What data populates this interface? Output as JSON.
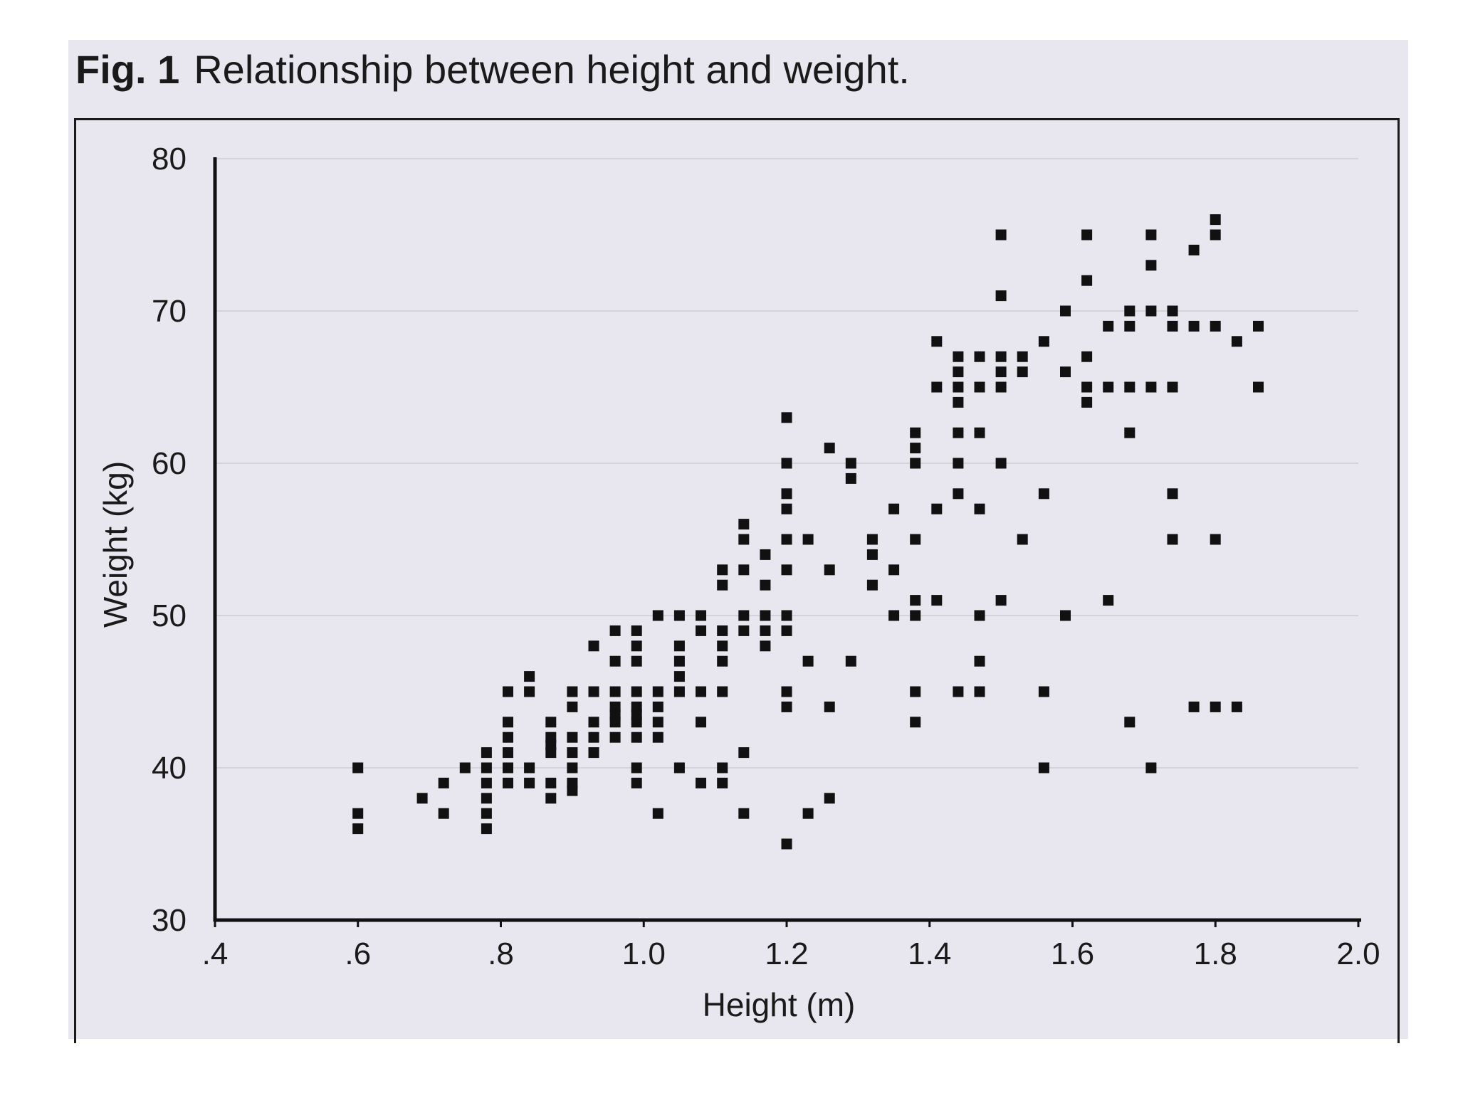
{
  "figure": {
    "label": "Fig. 1",
    "caption": "Relationship between height and weight."
  },
  "colors": {
    "panel_background": "#e8e6ee",
    "marker": "#111111",
    "axis": "#111111",
    "grid": "#d4d2da"
  },
  "chart_data": {
    "type": "scatter",
    "title": "Relationship between height and weight.",
    "xlabel": "Height (m)",
    "ylabel": "Weight (kg)",
    "xlim": [
      0.4,
      2.0
    ],
    "ylim": [
      30,
      80
    ],
    "x_ticks": [
      0.4,
      0.6,
      0.8,
      1.0,
      1.2,
      1.4,
      1.6,
      1.8,
      2.0
    ],
    "x_tick_labels": [
      ".4",
      ".6",
      ".8",
      "1.0",
      "1.2",
      "1.4",
      "1.6",
      "1.8",
      "2.0"
    ],
    "y_ticks": [
      30,
      40,
      50,
      60,
      70,
      80
    ],
    "y_tick_labels": [
      "30",
      "40",
      "50",
      "60",
      "70",
      "80"
    ],
    "grid": "horizontal",
    "marker": "square",
    "points": [
      [
        0.6,
        40
      ],
      [
        0.6,
        37
      ],
      [
        0.6,
        36
      ],
      [
        0.69,
        38
      ],
      [
        0.72,
        39
      ],
      [
        0.72,
        37
      ],
      [
        0.75,
        40
      ],
      [
        0.78,
        41
      ],
      [
        0.78,
        40
      ],
      [
        0.78,
        39
      ],
      [
        0.78,
        38
      ],
      [
        0.78,
        37
      ],
      [
        0.78,
        36
      ],
      [
        0.81,
        45
      ],
      [
        0.81,
        43
      ],
      [
        0.81,
        42
      ],
      [
        0.81,
        41
      ],
      [
        0.81,
        40
      ],
      [
        0.81,
        39
      ],
      [
        0.84,
        46
      ],
      [
        0.84,
        45
      ],
      [
        0.84,
        40
      ],
      [
        0.84,
        39
      ],
      [
        0.87,
        43
      ],
      [
        0.87,
        42
      ],
      [
        0.87,
        41.5
      ],
      [
        0.87,
        41
      ],
      [
        0.87,
        39
      ],
      [
        0.87,
        38
      ],
      [
        0.9,
        45
      ],
      [
        0.9,
        44
      ],
      [
        0.9,
        42
      ],
      [
        0.9,
        41
      ],
      [
        0.9,
        40
      ],
      [
        0.9,
        39
      ],
      [
        0.9,
        38.5
      ],
      [
        0.93,
        48
      ],
      [
        0.93,
        45
      ],
      [
        0.93,
        43
      ],
      [
        0.93,
        42
      ],
      [
        0.93,
        41
      ],
      [
        0.96,
        49
      ],
      [
        0.96,
        47
      ],
      [
        0.96,
        45
      ],
      [
        0.96,
        44
      ],
      [
        0.96,
        43.5
      ],
      [
        0.96,
        43
      ],
      [
        0.96,
        42
      ],
      [
        0.99,
        49
      ],
      [
        0.99,
        48
      ],
      [
        0.99,
        47
      ],
      [
        0.99,
        45
      ],
      [
        0.99,
        44
      ],
      [
        0.99,
        43.5
      ],
      [
        0.99,
        43
      ],
      [
        0.99,
        42
      ],
      [
        0.99,
        40
      ],
      [
        0.99,
        39
      ],
      [
        1.02,
        50
      ],
      [
        1.02,
        45
      ],
      [
        1.02,
        44
      ],
      [
        1.02,
        43
      ],
      [
        1.02,
        42
      ],
      [
        1.02,
        37
      ],
      [
        1.05,
        50
      ],
      [
        1.05,
        48
      ],
      [
        1.05,
        47
      ],
      [
        1.05,
        46
      ],
      [
        1.05,
        45
      ],
      [
        1.05,
        40
      ],
      [
        1.08,
        50
      ],
      [
        1.08,
        49
      ],
      [
        1.08,
        45
      ],
      [
        1.08,
        43
      ],
      [
        1.08,
        39
      ],
      [
        1.11,
        53
      ],
      [
        1.11,
        52
      ],
      [
        1.11,
        49
      ],
      [
        1.11,
        48
      ],
      [
        1.11,
        47
      ],
      [
        1.11,
        45
      ],
      [
        1.11,
        40
      ],
      [
        1.11,
        39
      ],
      [
        1.14,
        56
      ],
      [
        1.14,
        55
      ],
      [
        1.14,
        53
      ],
      [
        1.14,
        50
      ],
      [
        1.14,
        49
      ],
      [
        1.14,
        41
      ],
      [
        1.14,
        37
      ],
      [
        1.17,
        54
      ],
      [
        1.17,
        52
      ],
      [
        1.17,
        50
      ],
      [
        1.17,
        49
      ],
      [
        1.17,
        48
      ],
      [
        1.2,
        63
      ],
      [
        1.2,
        60
      ],
      [
        1.2,
        58
      ],
      [
        1.2,
        57
      ],
      [
        1.2,
        55
      ],
      [
        1.2,
        53
      ],
      [
        1.2,
        50
      ],
      [
        1.2,
        49
      ],
      [
        1.2,
        45
      ],
      [
        1.2,
        44
      ],
      [
        1.2,
        35
      ],
      [
        1.23,
        55
      ],
      [
        1.23,
        47
      ],
      [
        1.23,
        37
      ],
      [
        1.26,
        61
      ],
      [
        1.26,
        53
      ],
      [
        1.26,
        44
      ],
      [
        1.26,
        38
      ],
      [
        1.29,
        60
      ],
      [
        1.29,
        59
      ],
      [
        1.29,
        47
      ],
      [
        1.32,
        55
      ],
      [
        1.32,
        54
      ],
      [
        1.32,
        52
      ],
      [
        1.35,
        57
      ],
      [
        1.35,
        53
      ],
      [
        1.35,
        50
      ],
      [
        1.38,
        62
      ],
      [
        1.38,
        61
      ],
      [
        1.38,
        60
      ],
      [
        1.38,
        55
      ],
      [
        1.38,
        51
      ],
      [
        1.38,
        50
      ],
      [
        1.38,
        45
      ],
      [
        1.38,
        43
      ],
      [
        1.41,
        68
      ],
      [
        1.41,
        65
      ],
      [
        1.41,
        57
      ],
      [
        1.41,
        51
      ],
      [
        1.44,
        67
      ],
      [
        1.44,
        66
      ],
      [
        1.44,
        65
      ],
      [
        1.44,
        64
      ],
      [
        1.44,
        62
      ],
      [
        1.44,
        60
      ],
      [
        1.44,
        58
      ],
      [
        1.44,
        45
      ],
      [
        1.47,
        67
      ],
      [
        1.47,
        65
      ],
      [
        1.47,
        62
      ],
      [
        1.47,
        57
      ],
      [
        1.47,
        50
      ],
      [
        1.47,
        47
      ],
      [
        1.47,
        45
      ],
      [
        1.5,
        75
      ],
      [
        1.5,
        71
      ],
      [
        1.5,
        67
      ],
      [
        1.5,
        66
      ],
      [
        1.5,
        65
      ],
      [
        1.5,
        60
      ],
      [
        1.5,
        51
      ],
      [
        1.53,
        67
      ],
      [
        1.53,
        66
      ],
      [
        1.53,
        55
      ],
      [
        1.56,
        68
      ],
      [
        1.56,
        58
      ],
      [
        1.56,
        45
      ],
      [
        1.56,
        40
      ],
      [
        1.59,
        70
      ],
      [
        1.59,
        66
      ],
      [
        1.59,
        50
      ],
      [
        1.62,
        75
      ],
      [
        1.62,
        72
      ],
      [
        1.62,
        67
      ],
      [
        1.62,
        65
      ],
      [
        1.62,
        64
      ],
      [
        1.65,
        69
      ],
      [
        1.65,
        65
      ],
      [
        1.65,
        51
      ],
      [
        1.68,
        70
      ],
      [
        1.68,
        69
      ],
      [
        1.68,
        65
      ],
      [
        1.68,
        62
      ],
      [
        1.68,
        43
      ],
      [
        1.71,
        75
      ],
      [
        1.71,
        73
      ],
      [
        1.71,
        70
      ],
      [
        1.71,
        65
      ],
      [
        1.71,
        40
      ],
      [
        1.74,
        70
      ],
      [
        1.74,
        69
      ],
      [
        1.74,
        65
      ],
      [
        1.74,
        58
      ],
      [
        1.74,
        55
      ],
      [
        1.77,
        74
      ],
      [
        1.77,
        69
      ],
      [
        1.77,
        44
      ],
      [
        1.8,
        76
      ],
      [
        1.8,
        75
      ],
      [
        1.8,
        69
      ],
      [
        1.8,
        55
      ],
      [
        1.8,
        44
      ],
      [
        1.83,
        68
      ],
      [
        1.83,
        44
      ],
      [
        1.86,
        69
      ],
      [
        1.86,
        65
      ]
    ]
  }
}
